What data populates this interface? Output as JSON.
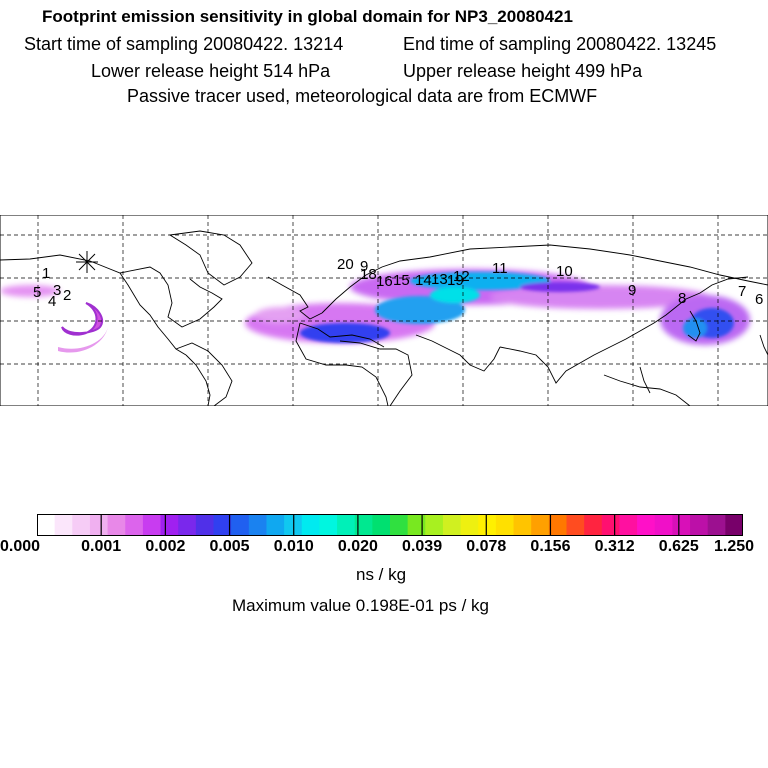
{
  "header": {
    "title": "Footprint emission sensitivity in global domain for NP3_20080421",
    "start_time": "Start time of sampling 20080422. 13214",
    "end_time": "End time of sampling 20080422. 13245",
    "lower_height": "Lower release height  514 hPa",
    "upper_height": "Upper release height  499 hPa",
    "note": "Passive tracer used, meteorological data are from ECMWF"
  },
  "map": {
    "markers": [
      "1",
      "5",
      "3",
      "4",
      "2",
      "20",
      "9",
      "18",
      "16",
      "15",
      "14",
      "13",
      "12",
      "19",
      "11",
      "10",
      "9",
      "8",
      "7",
      "6"
    ]
  },
  "colorbar": {
    "colors": [
      "#ffffff",
      "#fbe6fb",
      "#f6ccf6",
      "#f0b0f0",
      "#e888e8",
      "#dc64ec",
      "#c83cf0",
      "#a020f0",
      "#7a28ec",
      "#5030e8",
      "#3040f0",
      "#2060f0",
      "#1a82f0",
      "#10a8f0",
      "#10c8f0",
      "#00eaf0",
      "#00f6e0",
      "#00f0b8",
      "#00e890",
      "#00e070",
      "#30e040",
      "#78e820",
      "#a8f020",
      "#d0f020",
      "#eef010",
      "#fff000",
      "#ffe000",
      "#ffc400",
      "#ffa000",
      "#ff7800",
      "#ff4c20",
      "#ff2440",
      "#ff1070",
      "#ff10a0",
      "#ff10c8",
      "#f010c8",
      "#d810b8",
      "#bc10a8",
      "#9c1090",
      "#78006a"
    ],
    "ticks": [
      "0.000",
      "0.001",
      "0.002",
      "0.005",
      "0.010",
      "0.020",
      "0.039",
      "0.078",
      "0.156",
      "0.312",
      "0.625",
      "1.250"
    ],
    "units": "ns / kg",
    "max_value": "Maximum value  0.198E-01 ps / kg"
  }
}
